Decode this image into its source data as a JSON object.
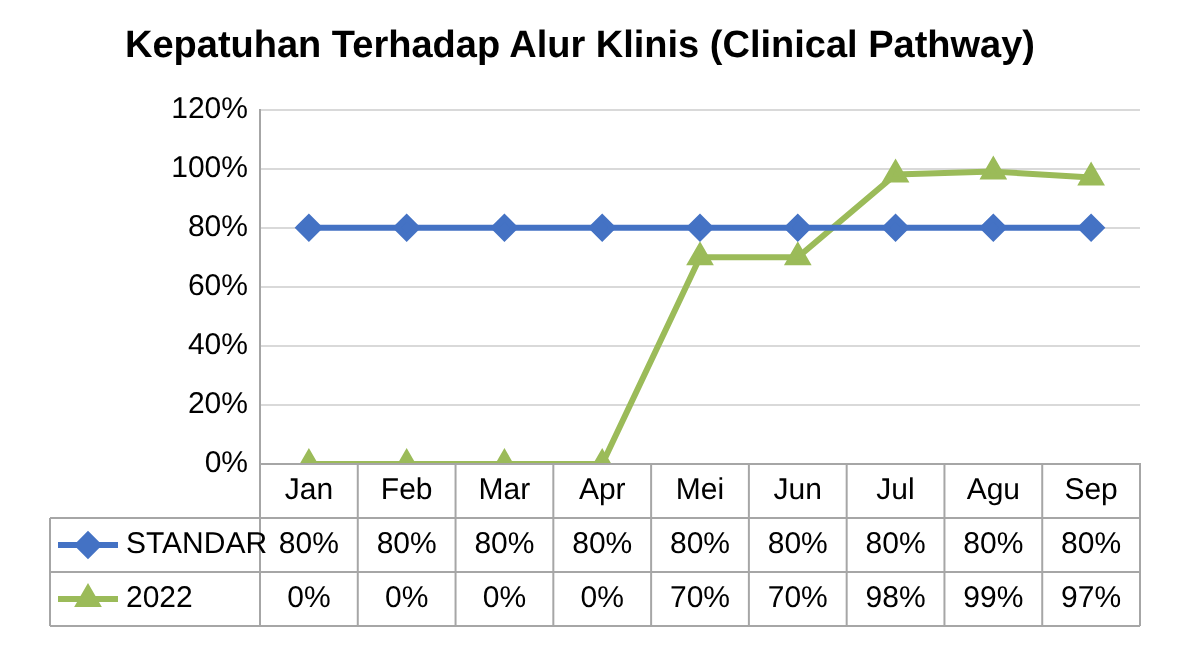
{
  "chart_data": {
    "type": "line",
    "title": "Kepatuhan Terhadap Alur Klinis (Clinical Pathway)",
    "categories": [
      "Jan",
      "Feb",
      "Mar",
      "Apr",
      "Mei",
      "Jun",
      "Jul",
      "Agu",
      "Sep"
    ],
    "ylim": [
      0,
      120
    ],
    "yticks": [
      {
        "value": 0,
        "label": "0%"
      },
      {
        "value": 20,
        "label": "20%"
      },
      {
        "value": 40,
        "label": "40%"
      },
      {
        "value": 60,
        "label": "60%"
      },
      {
        "value": 80,
        "label": "80%"
      },
      {
        "value": 100,
        "label": "100%"
      },
      {
        "value": 120,
        "label": "120%"
      }
    ],
    "grid": "y",
    "legend": "bottom",
    "line_style": "solid",
    "series": [
      {
        "name": "STANDAR",
        "color": "#4472c4",
        "marker": "diamond",
        "values": [
          80,
          80,
          80,
          80,
          80,
          80,
          80,
          80,
          80
        ],
        "value_labels": [
          "80%",
          "80%",
          "80%",
          "80%",
          "80%",
          "80%",
          "80%",
          "80%",
          "80%"
        ]
      },
      {
        "name": "2022",
        "color": "#9bbb59",
        "marker": "triangle",
        "values": [
          0,
          0,
          0,
          0,
          70,
          70,
          98,
          99,
          97
        ],
        "value_labels": [
          "0%",
          "0%",
          "0%",
          "0%",
          "70%",
          "70%",
          "98%",
          "99%",
          "97%"
        ]
      }
    ]
  }
}
